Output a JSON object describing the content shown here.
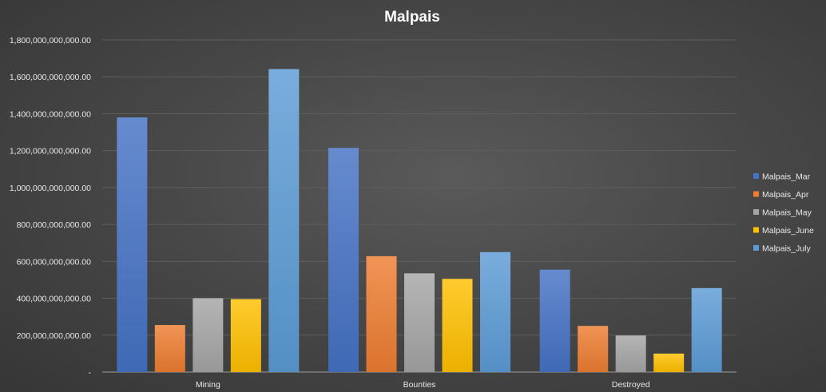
{
  "chart_data": {
    "type": "bar",
    "title": "Malpais",
    "xlabel": "",
    "ylabel": "",
    "categories": [
      "Mining",
      "Bounties",
      "Destroyed"
    ],
    "series": [
      {
        "name": "Malpais_Mar",
        "color": "#4472c4",
        "values": [
          1380000000000,
          1215000000000,
          555000000000
        ]
      },
      {
        "name": "Malpais_Apr",
        "color": "#ed7d31",
        "values": [
          255000000000,
          628000000000,
          250000000000
        ]
      },
      {
        "name": "Malpais_May",
        "color": "#a5a5a5",
        "values": [
          400000000000,
          535000000000,
          198000000000
        ]
      },
      {
        "name": "Malpais_June",
        "color": "#ffc000",
        "values": [
          395000000000,
          505000000000,
          100000000000
        ]
      },
      {
        "name": "Malpais_July",
        "color": "#5b9bd5",
        "values": [
          1642000000000,
          650000000000,
          455000000000
        ]
      }
    ],
    "ylim": [
      0,
      1800000000000
    ],
    "y_ticks": [
      "-",
      "200,000,000,000.00",
      "400,000,000,000.00",
      "600,000,000,000.00",
      "800,000,000,000.00",
      "1,000,000,000,000.00",
      "1,200,000,000,000.00",
      "1,400,000,000,000.00",
      "1,600,000,000,000.00",
      "1,800,000,000,000.00"
    ],
    "y_tick_values": [
      0,
      200000000000,
      400000000000,
      600000000000,
      800000000000,
      1000000000000,
      1200000000000,
      1400000000000,
      1600000000000,
      1800000000000
    ],
    "grid": true,
    "legend_position": "right"
  }
}
